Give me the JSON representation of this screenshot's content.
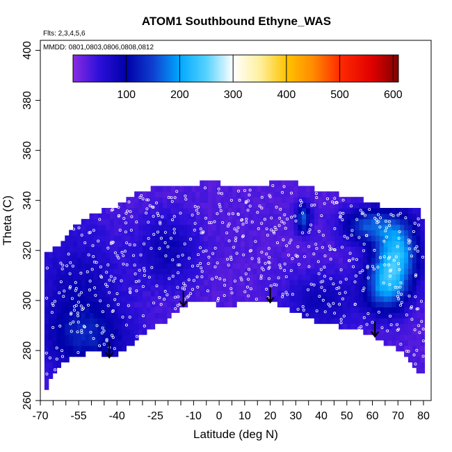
{
  "chart_data": {
    "type": "heatmap",
    "title": "ATOM1 Southbound Ethyne_WAS",
    "notes": {
      "flights": "Flts: 2,3,4,5,6",
      "dates": "MMDD: 0801,0803,0806,0808,0812"
    },
    "xlabel": "Latitude (deg N)",
    "ylabel": "Theta (C)",
    "xlim": [
      -70,
      83
    ],
    "ylim": [
      260,
      404
    ],
    "x_ticks_major": [
      -70,
      -55,
      -40,
      -25,
      -10,
      0,
      10,
      20,
      30,
      40,
      50,
      60,
      70,
      80
    ],
    "x_tick_labels": [
      "-70",
      "-55",
      "-40",
      "-25",
      "-10",
      "0",
      "10",
      "20",
      "30",
      "40",
      "50",
      "60",
      "70",
      "80"
    ],
    "x_ticks_minor": [
      -65,
      -60,
      -50,
      -45,
      -35,
      -30,
      -20,
      -15,
      -5,
      5,
      15,
      25,
      35,
      45,
      55,
      65,
      75
    ],
    "y_ticks": [
      260,
      280,
      300,
      320,
      340,
      360,
      380,
      400
    ],
    "y_tick_labels": [
      "260",
      "280",
      "300",
      "320",
      "340",
      "360",
      "380",
      "400"
    ],
    "colorbar": {
      "range": [
        0,
        610
      ],
      "ticks": [
        100,
        200,
        300,
        400,
        500,
        600
      ],
      "tick_labels": [
        "100",
        "200",
        "300",
        "400",
        "500",
        "600"
      ],
      "gradient": [
        {
          "v": 0,
          "color": "#8a2be2"
        },
        {
          "v": 50,
          "color": "#2b0fd9"
        },
        {
          "v": 100,
          "color": "#0000a8"
        },
        {
          "v": 150,
          "color": "#0f3fd0"
        },
        {
          "v": 200,
          "color": "#00a8ff"
        },
        {
          "v": 250,
          "color": "#55d2ff"
        },
        {
          "v": 300,
          "color": "#ffffff"
        },
        {
          "v": 350,
          "color": "#fff0a0"
        },
        {
          "v": 400,
          "color": "#ffc400"
        },
        {
          "v": 450,
          "color": "#ff8a00"
        },
        {
          "v": 500,
          "color": "#ff2a00"
        },
        {
          "v": 560,
          "color": "#e00000"
        },
        {
          "v": 610,
          "color": "#800000"
        }
      ]
    },
    "surface_boundary": [
      [
        -68,
        264
      ],
      [
        -65,
        270
      ],
      [
        -60,
        276
      ],
      [
        -52,
        279
      ],
      [
        -47,
        280
      ],
      [
        -43,
        277
      ],
      [
        -38,
        280
      ],
      [
        -30,
        286
      ],
      [
        -21,
        292
      ],
      [
        -12,
        299
      ],
      [
        -5,
        300
      ],
      [
        2,
        297
      ],
      [
        8,
        299
      ],
      [
        15,
        299
      ],
      [
        22,
        299
      ],
      [
        30,
        295
      ],
      [
        40,
        291
      ],
      [
        50,
        289
      ],
      [
        58,
        287
      ],
      [
        65,
        283
      ],
      [
        72,
        279
      ],
      [
        77,
        273
      ],
      [
        80,
        270
      ]
    ],
    "top_boundary": [
      [
        -68,
        318
      ],
      [
        -63,
        322
      ],
      [
        -60,
        326
      ],
      [
        -57,
        330
      ],
      [
        -52,
        333
      ],
      [
        -46,
        336
      ],
      [
        -40,
        338
      ],
      [
        -30,
        344
      ],
      [
        -20,
        346
      ],
      [
        -10,
        346
      ],
      [
        -3,
        349
      ],
      [
        3,
        345
      ],
      [
        10,
        346
      ],
      [
        20,
        347
      ],
      [
        30,
        347
      ],
      [
        40,
        344
      ],
      [
        50,
        342
      ],
      [
        60,
        339
      ],
      [
        70,
        336
      ],
      [
        78,
        336
      ],
      [
        80,
        332
      ]
    ],
    "hotspots": [
      {
        "lat": 70,
        "theta": 320,
        "value": 230,
        "spread_lat": 6,
        "spread_theta": 10
      },
      {
        "lat": 65,
        "theta": 306,
        "value": 200,
        "spread_lat": 6,
        "spread_theta": 8
      },
      {
        "lat": 58,
        "theta": 330,
        "value": 170,
        "spread_lat": 7,
        "spread_theta": 5
      },
      {
        "lat": 33,
        "theta": 333,
        "value": 185,
        "spread_lat": 2,
        "spread_theta": 4
      },
      {
        "lat": -55,
        "theta": 300,
        "value": 100,
        "spread_lat": 12,
        "spread_theta": 20
      },
      {
        "lat": -20,
        "theta": 320,
        "value": 100,
        "spread_lat": 8,
        "spread_theta": 10
      },
      {
        "lat": -50,
        "theta": 285,
        "value": 95,
        "spread_lat": 12,
        "spread_theta": 8
      },
      {
        "lat": 40,
        "theta": 300,
        "value": 95,
        "spread_lat": 10,
        "spread_theta": 8
      }
    ],
    "base_value": 30,
    "arrows_latitude": [
      -43,
      -14,
      20,
      61
    ]
  }
}
